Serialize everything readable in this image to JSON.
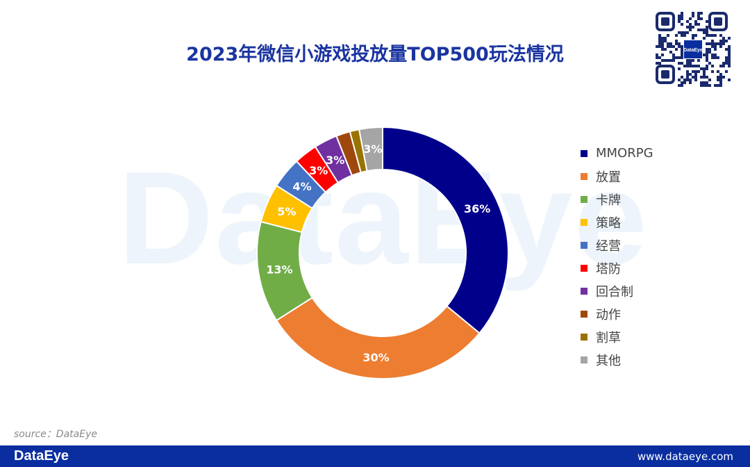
{
  "chart_data": {
    "type": "pie",
    "variant": "donut",
    "title": "2023年微信小游戏投放量TOP500玩法情况",
    "legend_position": "right",
    "slices": [
      {
        "label": "MMORPG",
        "value": 36,
        "data_label": "36%",
        "color": "#00008b"
      },
      {
        "label": "放置",
        "value": 30,
        "data_label": "30%",
        "color": "#ed7d31"
      },
      {
        "label": "卡牌",
        "value": 13,
        "data_label": "13%",
        "color": "#70ad47"
      },
      {
        "label": "策略",
        "value": 5,
        "data_label": "5%",
        "color": "#ffc000"
      },
      {
        "label": "经营",
        "value": 4,
        "data_label": "4%",
        "color": "#4472c4"
      },
      {
        "label": "塔防",
        "value": 3,
        "data_label": "3%",
        "color": "#ff0000"
      },
      {
        "label": "回合制",
        "value": 3,
        "data_label": "3%",
        "color": "#7030a0"
      },
      {
        "label": "动作",
        "value": 1.8,
        "data_label": "",
        "color": "#9e480e"
      },
      {
        "label": "割草",
        "value": 1.2,
        "data_label": "",
        "color": "#997300"
      },
      {
        "label": "其他",
        "value": 3,
        "data_label": "3%",
        "color": "#a5a5a5"
      }
    ]
  },
  "watermark": "DataEye",
  "source": "source：DataEye",
  "footer": {
    "brand": "DataEye",
    "url": "www.dataeye.com",
    "color": "#0a2ea0"
  },
  "qr_label": "DataEye"
}
